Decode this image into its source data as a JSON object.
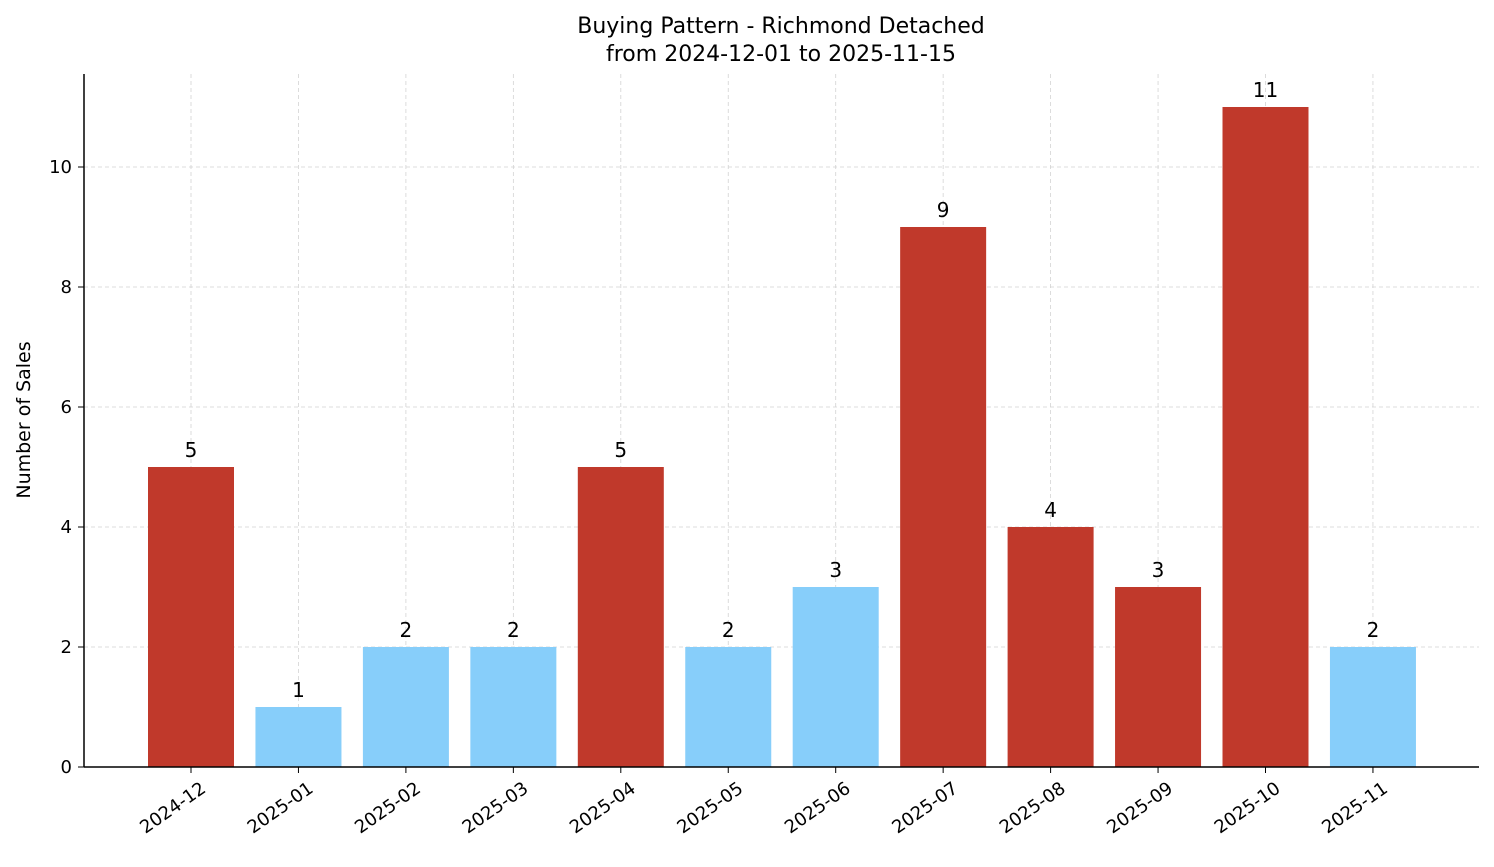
{
  "chart_data": {
    "type": "bar",
    "title": "Buying Pattern - Richmond Detached",
    "subtitle": "from 2024-12-01 to 2025-11-15",
    "xlabel": "",
    "ylabel": "Number of Sales",
    "categories": [
      "2024-12",
      "2025-01",
      "2025-02",
      "2025-03",
      "2025-04",
      "2025-05",
      "2025-06",
      "2025-07",
      "2025-08",
      "2025-09",
      "2025-10",
      "2025-11"
    ],
    "values": [
      5,
      1,
      2,
      2,
      5,
      2,
      3,
      9,
      4,
      3,
      11,
      2
    ],
    "bar_colors": [
      "#c0392b",
      "#87cefa",
      "#87cefa",
      "#87cefa",
      "#c0392b",
      "#87cefa",
      "#87cefa",
      "#c0392b",
      "#c0392b",
      "#c0392b",
      "#c0392b",
      "#87cefa"
    ],
    "ylim": [
      0,
      11.55
    ],
    "yticks": [
      0,
      2,
      4,
      6,
      8,
      10
    ],
    "grid": true,
    "data_labels": true
  }
}
